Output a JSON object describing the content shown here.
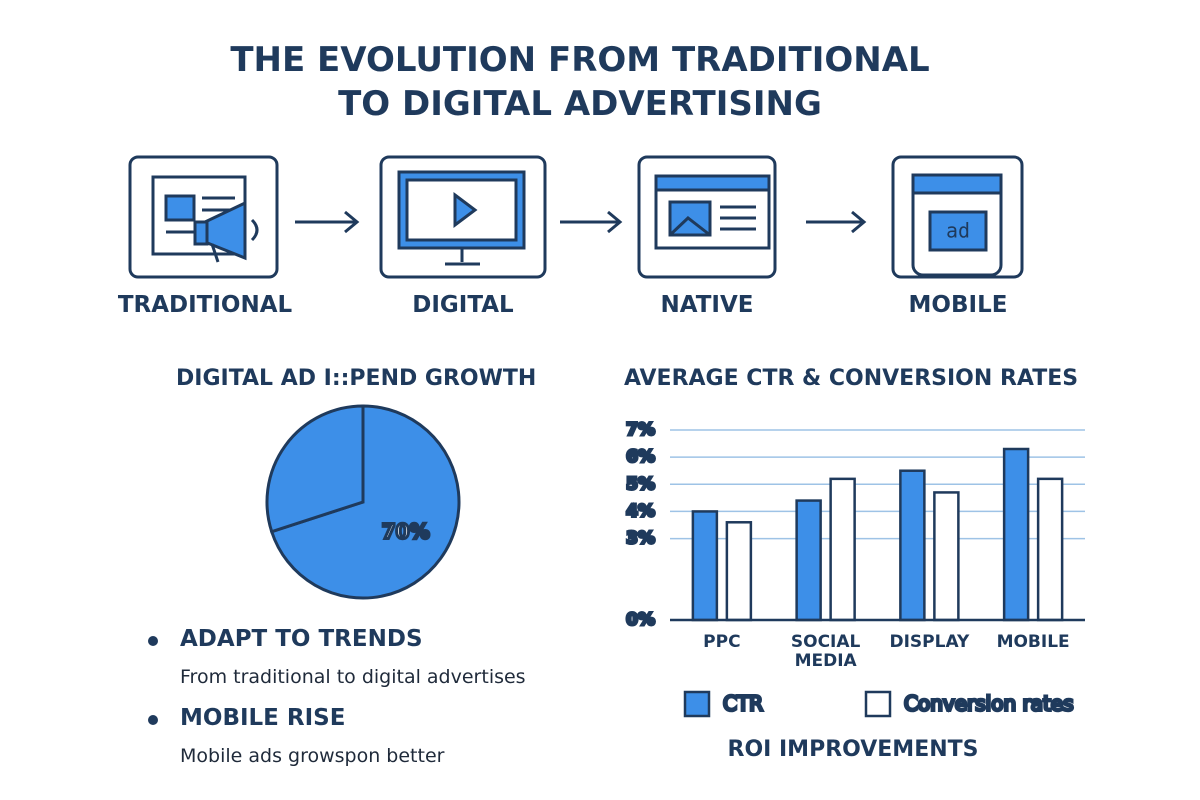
{
  "title": "THE EVOLUTION FROM TRADITIONAL TO DIGITAL ADVERTISING",
  "steps": [
    {
      "label": "TRADITIONAL"
    },
    {
      "label": "DIGITAL"
    },
    {
      "label": "NATIVE"
    },
    {
      "label": "MOBILE"
    }
  ],
  "chart_data": [
    {
      "type": "pie",
      "title": "DIGITAL AD I::PEND GROWTH",
      "values": [
        70,
        30
      ],
      "value_labels": [
        "70%",
        null
      ],
      "color": "#3d8fe8"
    },
    {
      "type": "bar",
      "title": "AVERAGE CTR & CONVERSION RATES",
      "categories": [
        "PPC",
        "SOCIAL MEDIA",
        "DISPLAY",
        "MOBILE"
      ],
      "series": [
        {
          "name": "CTR",
          "color": "#3d8fe8",
          "values": [
            4.0,
            4.4,
            5.5,
            6.3
          ]
        },
        {
          "name": "Conversion rates",
          "color": "#ffffff",
          "values": [
            3.6,
            5.2,
            4.7,
            5.2
          ]
        }
      ],
      "ylim": [
        0,
        7
      ],
      "yticks": [
        {
          "value": 0,
          "label": "0%"
        },
        {
          "value": 3,
          "label": "3%"
        },
        {
          "value": 4,
          "label": "4%"
        },
        {
          "value": 5,
          "label": "5%"
        },
        {
          "value": 6,
          "label": "6%"
        },
        {
          "value": 7,
          "label": "7%"
        }
      ],
      "grid": true,
      "caption": "ROI IMPROVEMENTS"
    }
  ],
  "bullets": [
    {
      "heading": "ADAPT TO TRENDS",
      "text": "From traditional to digital advertises"
    },
    {
      "heading": "MOBILE RISE",
      "text": "Mobile ads growspon better"
    }
  ]
}
